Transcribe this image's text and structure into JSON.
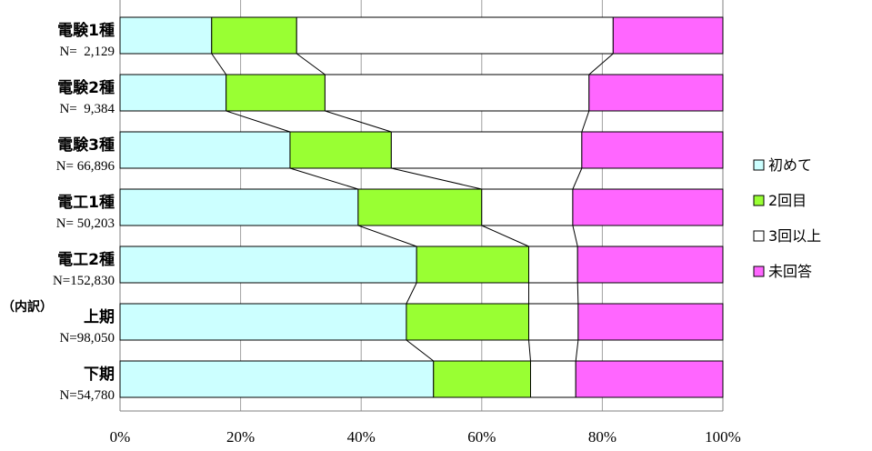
{
  "chart_data": {
    "type": "bar",
    "orientation": "horizontal",
    "stacked_percent": true,
    "categories": [
      {
        "name": "電験1種",
        "n": "N=  2,129"
      },
      {
        "name": "電験2種",
        "n": "N=  9,384"
      },
      {
        "name": "電験3種",
        "n": "N= 66,896"
      },
      {
        "name": "電工1種",
        "n": "N= 50,203"
      },
      {
        "name": "電工2種",
        "n": "N=152,830"
      },
      {
        "name": "上期",
        "n": "N=98,050",
        "prefix": "（内訳）"
      },
      {
        "name": "下期",
        "n": "N=54,780"
      }
    ],
    "series": [
      {
        "name": "初めて",
        "color": "#CCFFFF",
        "values": [
          15.2,
          17.6,
          28.2,
          39.5,
          49.2,
          47.5,
          52.0
        ]
      },
      {
        "name": "2回目",
        "color": "#99FF33",
        "values": [
          14.1,
          16.4,
          16.8,
          20.5,
          18.6,
          20.3,
          16.1
        ]
      },
      {
        "name": "3回以上",
        "color": "#FFFFFF",
        "values": [
          52.5,
          43.8,
          31.6,
          15.1,
          8.1,
          8.2,
          7.5
        ]
      },
      {
        "name": "未回答",
        "color": "#FF66FF",
        "values": [
          18.2,
          22.2,
          23.4,
          24.9,
          24.1,
          24.0,
          24.4
        ]
      }
    ],
    "x_ticks": [
      "0%",
      "20%",
      "40%",
      "60%",
      "80%",
      "100%"
    ],
    "xlim": [
      0,
      100
    ],
    "grid": true,
    "legend_position": "right"
  }
}
